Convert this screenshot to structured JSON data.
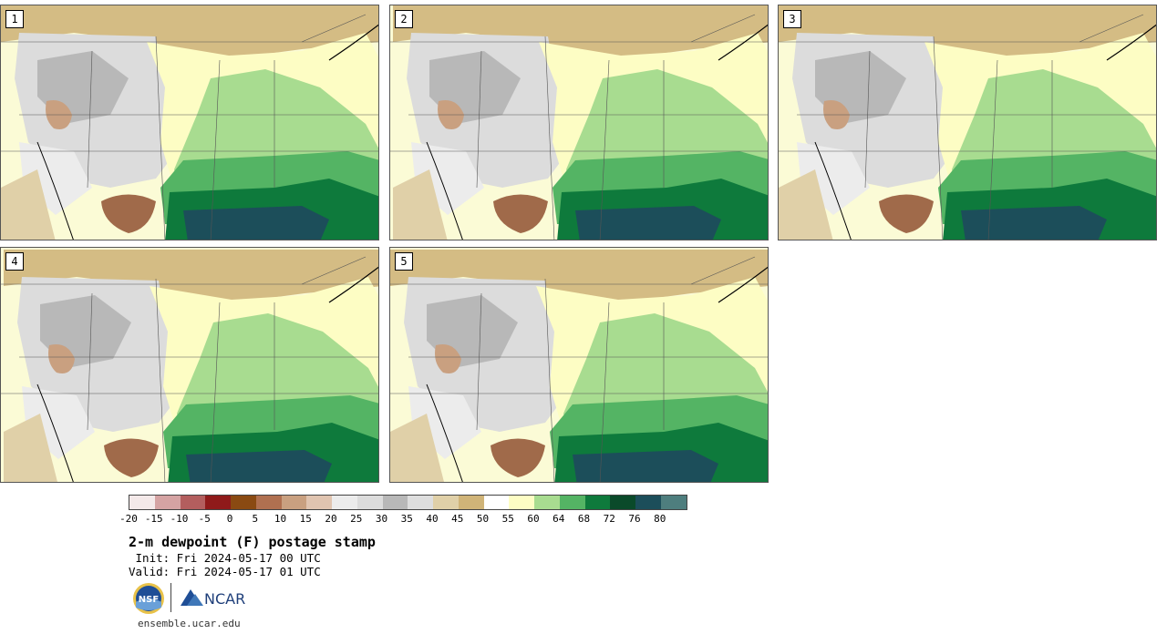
{
  "panels": [
    {
      "label": "1"
    },
    {
      "label": "2"
    },
    {
      "label": "3"
    },
    {
      "label": "4"
    },
    {
      "label": "5"
    }
  ],
  "colorbar": {
    "colors": [
      "#f4e9e9",
      "#d5a3a3",
      "#b35e5e",
      "#8f1a1a",
      "#8a4a12",
      "#b07050",
      "#c9a080",
      "#e0c4b0",
      "#ececec",
      "#dcdcdc",
      "#b8b8b8",
      "#dedede",
      "#e0d0a8",
      "#d0b478",
      "#ffffff",
      "#fdfdc4",
      "#a8dc90",
      "#54b464",
      "#0e7a3c",
      "#0a4a2a",
      "#1c4e5a",
      "#4e7e7e"
    ],
    "tick_labels": [
      "-20",
      "-15",
      "-10",
      "-5",
      "0",
      "5",
      "10",
      "15",
      "20",
      "25",
      "30",
      "35",
      "40",
      "45",
      "50",
      "55",
      "60",
      "64",
      "68",
      "72",
      "76",
      "80"
    ]
  },
  "title": "2-m dewpoint (F) postage stamp",
  "init": " Init: Fri 2024-05-17 00 UTC",
  "valid": "Valid: Fri 2024-05-17 01 UTC",
  "logos": {
    "nsf": "NSF",
    "ncar": "NCAR"
  },
  "footer": "ensemble.ucar.edu"
}
